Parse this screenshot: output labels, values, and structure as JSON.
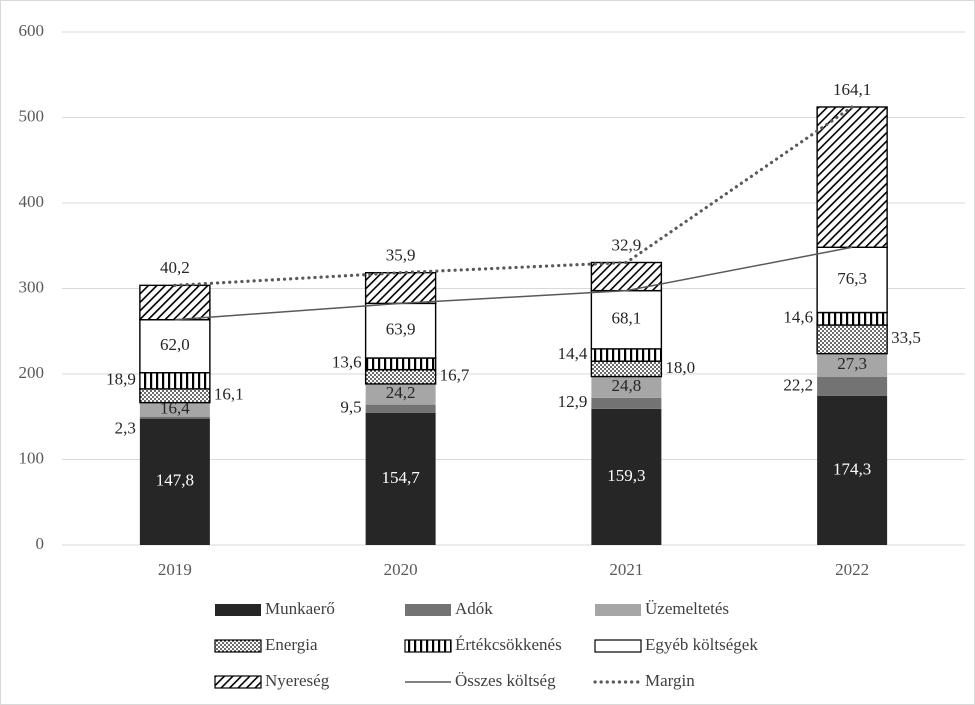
{
  "chart_data": {
    "type": "bar",
    "stacked": true,
    "categories": [
      "2019",
      "2020",
      "2021",
      "2022"
    ],
    "ylim": [
      0,
      600
    ],
    "yticks": [
      0,
      100,
      200,
      300,
      400,
      500,
      600
    ],
    "grid": true,
    "legend_position": "bottom",
    "series": [
      {
        "name": "Munkaerő",
        "pattern": "solid-black",
        "values": [
          147.8,
          154.7,
          159.3,
          174.3
        ],
        "labels": [
          "147,8",
          "154,7",
          "159,3",
          "174,3"
        ]
      },
      {
        "name": "Adók",
        "pattern": "dark-gray",
        "values": [
          2.3,
          9.5,
          12.9,
          22.2
        ],
        "labels": [
          "2,3",
          "9,5",
          "12,9",
          "22,2"
        ]
      },
      {
        "name": "Üzemeltetés",
        "pattern": "light-gray",
        "values": [
          16.4,
          24.2,
          24.8,
          27.3
        ],
        "labels": [
          "16,4",
          "24,2",
          "24,8",
          "27,3"
        ]
      },
      {
        "name": "Energia",
        "pattern": "dots",
        "values": [
          16.1,
          16.7,
          18.0,
          33.5
        ],
        "labels": [
          "16,1",
          "16,7",
          "18,0",
          "33,5"
        ]
      },
      {
        "name": "Értékcsökkenés",
        "pattern": "vertical-lines",
        "values": [
          18.9,
          13.6,
          14.4,
          14.6
        ],
        "labels": [
          "18,9",
          "13,6",
          "14,4",
          "14,6"
        ]
      },
      {
        "name": "Egyéb költségek",
        "pattern": "white",
        "values": [
          62.0,
          63.9,
          68.1,
          76.3
        ],
        "labels": [
          "62,0",
          "63,9",
          "68,1",
          "76,3"
        ]
      },
      {
        "name": "Nyereség",
        "pattern": "diagonal-hatch",
        "values": [
          40.2,
          35.9,
          32.9,
          164.1
        ],
        "labels": [
          "40,2",
          "35,9",
          "32,9",
          "164,1"
        ]
      }
    ],
    "lines": [
      {
        "name": "Összes költség",
        "style": "solid",
        "values": [
          263.5,
          282.6,
          297.5,
          348.2
        ]
      },
      {
        "name": "Margin",
        "style": "dotted",
        "values": [
          303.7,
          318.5,
          330.4,
          512.3
        ]
      }
    ],
    "colors": {
      "munkaero": "#262626",
      "adok": "#737373",
      "uzemeltetes": "#a6a6a6",
      "line": "#595959"
    }
  }
}
